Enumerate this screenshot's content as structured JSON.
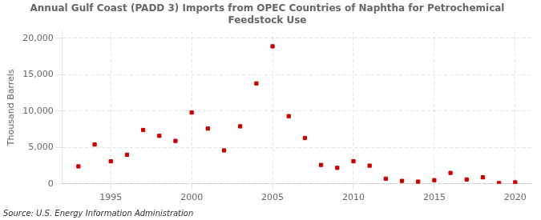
{
  "chart_data": {
    "type": "scatter",
    "title": "Annual Gulf Coast (PADD 3) Imports from OPEC Countries of Naphtha for Petrochemical\nFeedstock Use",
    "ylabel": "Thousand Barrels",
    "annotations": [
      "Source: U.S. Energy Information Administration"
    ],
    "x": [
      1993,
      1994,
      1995,
      1996,
      1997,
      1998,
      1999,
      2000,
      2001,
      2002,
      2003,
      2004,
      2005,
      2006,
      2007,
      2008,
      2009,
      2010,
      2011,
      2012,
      2013,
      2014,
      2015,
      2016,
      2017,
      2018,
      2019,
      2020
    ],
    "values": [
      2400,
      5400,
      3100,
      4000,
      7400,
      6600,
      5900,
      9800,
      7600,
      4600,
      7900,
      13800,
      18900,
      9300,
      6300,
      2600,
      2200,
      3100,
      2500,
      700,
      400,
      300,
      500,
      1500,
      600,
      900,
      100,
      200
    ],
    "color": "#cc0000",
    "marker": "square",
    "xlim": [
      1992,
      2021
    ],
    "ylim": [
      0,
      21000
    ],
    "xticks": [
      1995,
      2000,
      2005,
      2010,
      2015,
      2020
    ],
    "yticks": [
      0,
      {
        "value": 5000,
        "label": "5,000"
      },
      {
        "value": 10000,
        "label": "10,000"
      },
      {
        "value": 15000,
        "label": "15,000"
      },
      {
        "value": 20000,
        "label": "20,000"
      }
    ],
    "grid": true
  }
}
